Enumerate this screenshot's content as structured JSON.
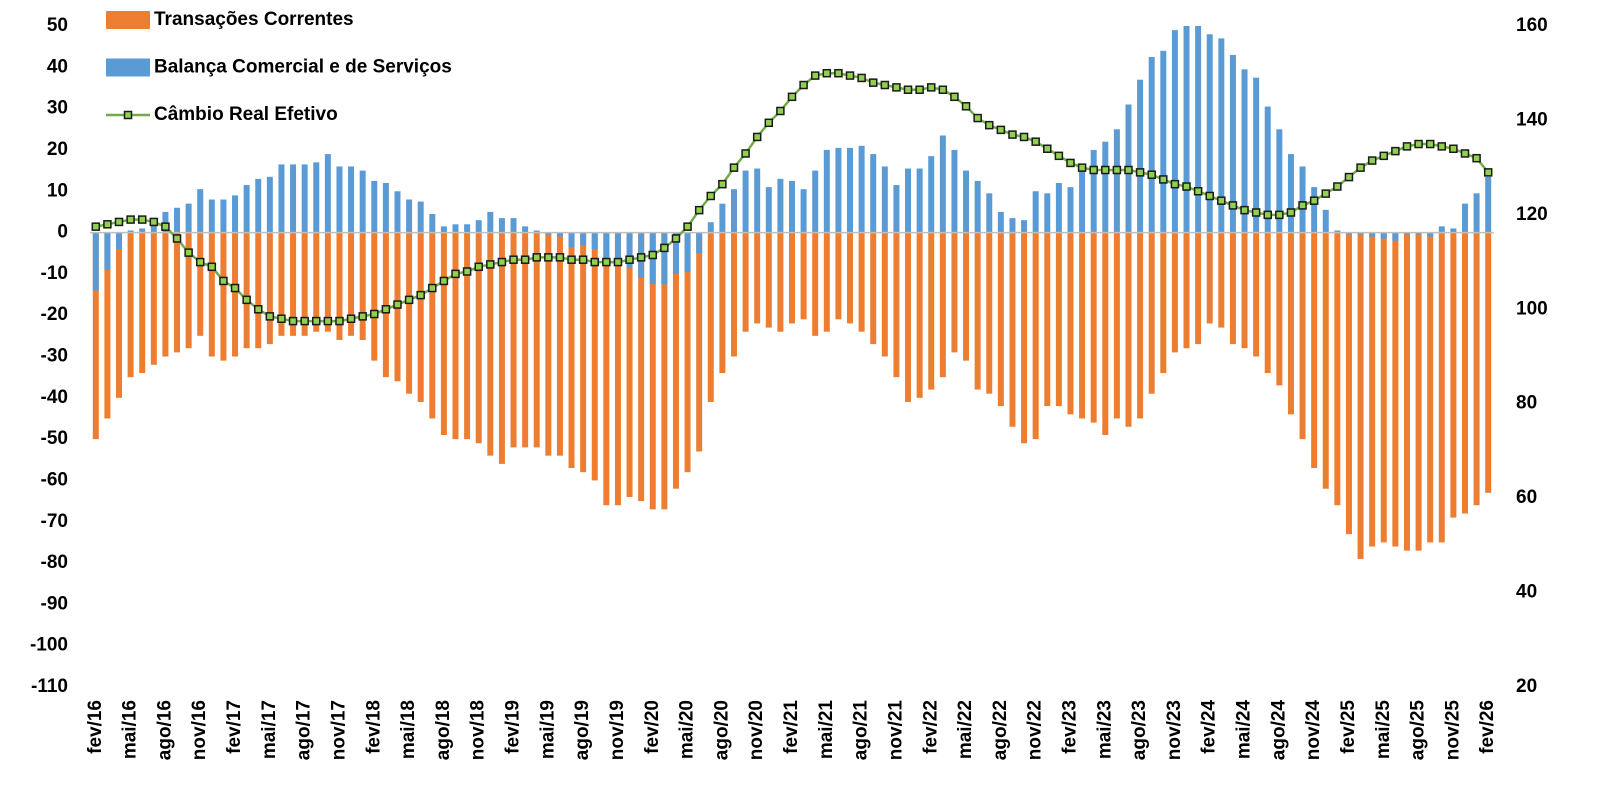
{
  "chart_data": {
    "type": "bar-line",
    "categories": [
      "fev/16",
      null,
      null,
      "mai/16",
      null,
      null,
      "ago/16",
      null,
      null,
      "nov/16",
      null,
      null,
      "fev/17",
      null,
      null,
      "mai/17",
      null,
      null,
      "ago/17",
      null,
      null,
      "nov/17",
      null,
      null,
      "fev/18",
      null,
      null,
      "mai/18",
      null,
      null,
      "ago/18",
      null,
      null,
      "nov/18",
      null,
      null,
      "fev/19",
      null,
      null,
      "mai/19",
      null,
      null,
      "ago/19",
      null,
      null,
      "nov/19",
      null,
      null,
      "fev/20",
      null,
      null,
      "mai/20",
      null,
      null,
      "ago/20",
      null,
      null,
      "nov/20",
      null,
      null,
      "fev/21",
      null,
      null,
      "mai/21",
      null,
      null,
      "ago/21",
      null,
      null,
      "nov/21",
      null,
      null,
      "fev/22",
      null,
      null,
      "mai/22",
      null,
      null,
      "ago/22",
      null,
      null,
      "nov/22",
      null,
      null,
      "fev/23",
      null,
      null,
      "mai/23",
      null,
      null,
      "ago/23",
      null,
      null,
      "nov/23",
      null,
      null,
      "fev/24",
      null,
      null,
      "mai/24",
      null,
      null,
      "ago/24",
      null,
      null,
      "nov/24",
      null,
      null,
      "fev/25",
      null,
      null,
      "mai/25",
      null,
      null,
      "ago/25",
      null,
      null,
      "nov/25",
      null,
      null,
      "fev/26"
    ],
    "series": [
      {
        "name": "Transações Correntes",
        "color": "#ED7D31",
        "kind": "bar",
        "values": [
          -50,
          -45,
          -40,
          -35,
          -34,
          -32,
          -30,
          -29,
          -28,
          -25,
          -30,
          -31,
          -30,
          -28,
          -28,
          -27,
          -25,
          -25,
          -25,
          -24,
          -24,
          -26,
          -25,
          -26,
          -31,
          -35,
          -36,
          -39,
          -41,
          -45,
          -49,
          -50,
          -50,
          -51,
          -54,
          -56,
          -52,
          -52,
          -52,
          -54,
          -54,
          -57,
          -58,
          -60,
          -66,
          -66,
          -64,
          -65,
          -67,
          -67,
          -62,
          -58,
          -53,
          -41,
          -34,
          -30,
          -24,
          -22,
          -23,
          -24,
          -22,
          -21,
          -25,
          -24,
          -21,
          -22,
          -24,
          -27,
          -30,
          -35,
          -41,
          -40,
          -38,
          -35,
          -29,
          -31,
          -38,
          -39,
          -42,
          -47,
          -51,
          -50,
          -42,
          -42,
          -44,
          -45,
          -46,
          -49,
          -45,
          -47,
          -45,
          -39,
          -34,
          -29,
          -28,
          -27,
          -22,
          -23,
          -27,
          -28,
          -30,
          -34,
          -37,
          -44,
          -50,
          -57,
          -62,
          -66,
          -73,
          -79,
          -76,
          -75,
          -76,
          -77,
          -77,
          -75,
          -75,
          -69,
          -68,
          -66,
          -63
        ]
      },
      {
        "name": "Balança Comercial e de Serviços",
        "color": "#5B9BD5",
        "kind": "bar",
        "values": [
          -14,
          -9,
          -4,
          0.5,
          1,
          3,
          5,
          6,
          7,
          10.5,
          8,
          8,
          9,
          11.5,
          13,
          13.5,
          16.5,
          16.5,
          16.5,
          17,
          19,
          16,
          16,
          15,
          12.5,
          12,
          10,
          8,
          7.5,
          4.5,
          1.5,
          2,
          2,
          3,
          5,
          3.5,
          3.5,
          1.5,
          0.5,
          -0.5,
          -1,
          -3.5,
          -3,
          -4,
          -7,
          -8,
          -8.5,
          -11,
          -12.5,
          -12.5,
          -10,
          -9.5,
          -5,
          2.5,
          7,
          10.5,
          15,
          15.5,
          11,
          13,
          12.5,
          10.5,
          15,
          20,
          20.5,
          20.5,
          21,
          19,
          16,
          11.5,
          15.5,
          15.5,
          18.5,
          23.5,
          20,
          15,
          12.5,
          9.5,
          5,
          3.5,
          3,
          10,
          9.5,
          12,
          11,
          15,
          20,
          22,
          25,
          31,
          37,
          42.5,
          44,
          49,
          50,
          50,
          48,
          47,
          43,
          39.5,
          37.5,
          30.5,
          25,
          19,
          16,
          11,
          5.5,
          0.5,
          -0.5,
          -0.5,
          -1,
          -1.5,
          -2,
          -0.5,
          -0.5,
          -1,
          1.5,
          1,
          7,
          9.5,
          13.5
        ]
      },
      {
        "name": "Câmbio Real Efetivo",
        "color": "#70AD47",
        "kind": "line",
        "axis": "y2",
        "marker_color": "#92D050",
        "values": [
          117.5,
          118,
          118.5,
          119,
          119,
          118.5,
          117.5,
          115,
          112,
          110,
          109,
          106,
          104.5,
          102,
          100,
          98.5,
          98,
          97.5,
          97.5,
          97.5,
          97.5,
          97.5,
          98,
          98.5,
          99,
          100,
          101,
          102,
          103,
          104.5,
          106,
          107.5,
          108,
          109,
          109.5,
          110,
          110.5,
          110.5,
          111,
          111,
          111,
          110.5,
          110.5,
          110,
          110,
          110,
          110.5,
          111,
          111.5,
          113,
          115,
          117.5,
          121,
          124,
          126.5,
          130,
          133,
          136.5,
          139.5,
          142,
          145,
          147.5,
          149.5,
          150,
          150,
          149.5,
          149,
          148,
          147.5,
          147,
          146.5,
          146.5,
          147,
          146.5,
          145,
          143,
          140.5,
          139,
          138,
          137,
          136.5,
          135.5,
          134,
          132.5,
          131,
          130,
          129.5,
          129.5,
          129.5,
          129.5,
          129,
          128.5,
          127.5,
          126.5,
          126,
          125,
          124,
          123,
          122,
          121,
          120.5,
          120,
          120,
          120.5,
          122,
          123,
          124.5,
          126,
          128,
          130,
          131.5,
          132.5,
          133.5,
          134.5,
          135,
          135,
          134.5,
          134,
          133,
          132,
          129
        ]
      }
    ],
    "ylim": [
      -110,
      50
    ],
    "yticks": [
      50,
      40,
      30,
      20,
      10,
      0,
      -10,
      -20,
      -30,
      -40,
      -50,
      -60,
      -70,
      -80,
      -90,
      -100,
      -110
    ],
    "y2lim": [
      20,
      160
    ],
    "y2ticks": [
      160,
      140,
      120,
      100,
      80,
      60,
      40,
      20
    ],
    "grid": false,
    "legend": "top-left"
  }
}
